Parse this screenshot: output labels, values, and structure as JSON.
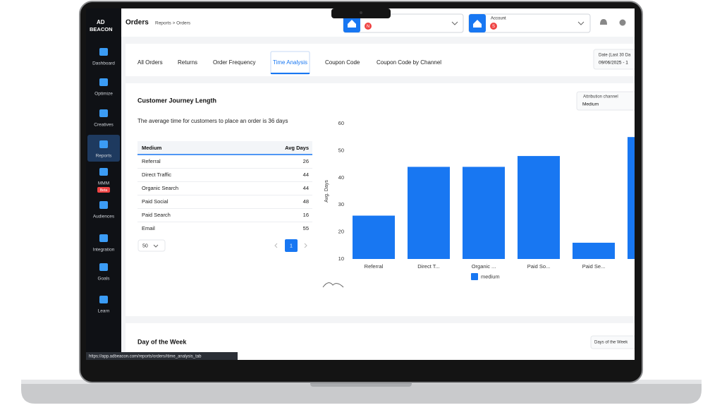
{
  "header": {
    "title": "Orders",
    "breadcrumb": "Reports > Orders",
    "account_label": "Account",
    "avatar_1": "N",
    "avatar_2": "S"
  },
  "logo": {
    "line1": "AD",
    "line2": "BEACON"
  },
  "nav": [
    {
      "label": "Dashboard"
    },
    {
      "label": "Optimize"
    },
    {
      "label": "Creatives"
    },
    {
      "label": "Reports"
    },
    {
      "label": "MMM",
      "badge": "Beta"
    },
    {
      "label": "Audiences"
    },
    {
      "label": "Integration"
    },
    {
      "label": "Goals"
    },
    {
      "label": "Learn"
    }
  ],
  "tabs": [
    "All Orders",
    "Returns",
    "Order Frequency",
    "Time Analysis",
    "Coupon Code",
    "Coupon Code by Channel"
  ],
  "date_filter": {
    "label": "Date (Last 30 Da",
    "value": "09/06/2025 - 1"
  },
  "section": {
    "title": "Customer Journey Length",
    "filter_label": "Attribution channel",
    "filter_value": "Medium",
    "summary": "The average time for customers to place an order is 36 days"
  },
  "table": {
    "columns": [
      "Medium",
      "Avg Days"
    ],
    "rows": [
      [
        "Referral",
        "26"
      ],
      [
        "Direct Traffic",
        "44"
      ],
      [
        "Organic Search",
        "44"
      ],
      [
        "Paid Social",
        "48"
      ],
      [
        "Paid Search",
        "16"
      ],
      [
        "Email",
        "55"
      ]
    ],
    "page_size": "50",
    "page": "1"
  },
  "chart_data": {
    "type": "bar",
    "y_label": "Avg. Days",
    "categories": [
      "Referral",
      "Direct T...",
      "Organic ...",
      "Paid So...",
      "Paid Se...",
      null
    ],
    "series": [
      {
        "name": "medium",
        "color": "#1877f2",
        "values": [
          26,
          44,
          44,
          48,
          16,
          55
        ]
      }
    ],
    "ylim": [
      10,
      60
    ],
    "yticks": [
      10,
      20,
      30,
      40,
      50,
      60
    ],
    "grid": false
  },
  "section2": {
    "title": "Day of the Week",
    "filter": "Days of the Week"
  },
  "status_url": "https://app.adbeacon.com/reports/orders#time_analysis_tab"
}
